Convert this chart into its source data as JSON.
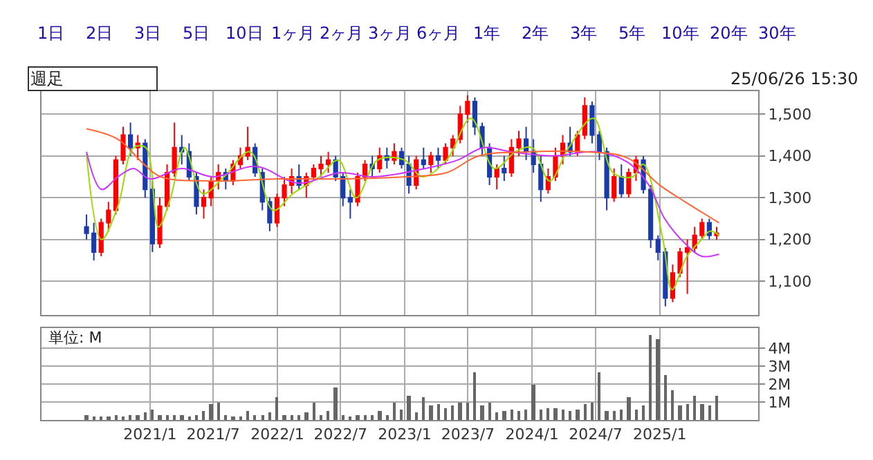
{
  "chart_data": [
    {
      "type": "other",
      "annotations": [
        "1日",
        "2日",
        "3日",
        "5日",
        "10日",
        "1ヶ月",
        "2ヶ月",
        "3ヶ月",
        "6ヶ月",
        "1年",
        "2年",
        "3年",
        "5年",
        "10年",
        "20年",
        "30年"
      ]
    },
    {
      "type": "candlestick",
      "annotations": [
        "週足",
        "25/06/26 15:30"
      ],
      "x": [
        "2020-07-03",
        "2020-07-24",
        "2020-08-14",
        "2020-09-04",
        "2020-09-25",
        "2020-10-16",
        "2020-11-06",
        "2020-11-27",
        "2020-12-18",
        "2021-01-08",
        "2021-01-29",
        "2021-02-19",
        "2021-03-12",
        "2021-04-02",
        "2021-04-23",
        "2021-05-14",
        "2021-06-04",
        "2021-06-25",
        "2021-07-16",
        "2021-08-06",
        "2021-08-27",
        "2021-09-17",
        "2021-10-08",
        "2021-10-29",
        "2021-11-19",
        "2021-12-10",
        "2021-12-31",
        "2022-01-21",
        "2022-02-11",
        "2022-03-04",
        "2022-03-25",
        "2022-04-15",
        "2022-05-06",
        "2022-05-27",
        "2022-06-17",
        "2022-07-08",
        "2022-07-29",
        "2022-08-19",
        "2022-09-09",
        "2022-09-30",
        "2022-10-21",
        "2022-11-11",
        "2022-12-02",
        "2022-12-23",
        "2023-01-13",
        "2023-02-03",
        "2023-02-24",
        "2023-03-17",
        "2023-04-07",
        "2023-04-28",
        "2023-05-19",
        "2023-06-09",
        "2023-06-30",
        "2023-07-21",
        "2023-08-11",
        "2023-09-01",
        "2023-09-22",
        "2023-10-13",
        "2023-11-03",
        "2023-11-24",
        "2023-12-15",
        "2024-01-05",
        "2024-01-26",
        "2024-02-16",
        "2024-03-08",
        "2024-03-29",
        "2024-04-19",
        "2024-05-10",
        "2024-05-31",
        "2024-06-21",
        "2024-07-12",
        "2024-08-02",
        "2024-08-23",
        "2024-09-13",
        "2024-10-04",
        "2024-10-25",
        "2024-11-15",
        "2024-12-06",
        "2024-12-27",
        "2025-01-17",
        "2025-02-07",
        "2025-02-28",
        "2025-03-21",
        "2025-04-11",
        "2025-05-02",
        "2025-05-23",
        "2025-06-13"
      ],
      "ohlc": [
        [
          1230,
          1260,
          1200,
          1215
        ],
        [
          1215,
          1240,
          1150,
          1170
        ],
        [
          1170,
          1250,
          1160,
          1240
        ],
        [
          1240,
          1290,
          1220,
          1270
        ],
        [
          1270,
          1400,
          1260,
          1390
        ],
        [
          1390,
          1470,
          1380,
          1450
        ],
        [
          1450,
          1480,
          1400,
          1420
        ],
        [
          1420,
          1450,
          1390,
          1430
        ],
        [
          1430,
          1440,
          1300,
          1320
        ],
        [
          1320,
          1340,
          1170,
          1190
        ],
        [
          1190,
          1300,
          1180,
          1280
        ],
        [
          1280,
          1380,
          1270,
          1360
        ],
        [
          1360,
          1480,
          1350,
          1420
        ],
        [
          1420,
          1450,
          1380,
          1410
        ],
        [
          1410,
          1430,
          1340,
          1350
        ],
        [
          1350,
          1360,
          1260,
          1280
        ],
        [
          1280,
          1320,
          1250,
          1300
        ],
        [
          1300,
          1350,
          1280,
          1340
        ],
        [
          1340,
          1380,
          1320,
          1360
        ],
        [
          1360,
          1370,
          1320,
          1340
        ],
        [
          1340,
          1390,
          1330,
          1380
        ],
        [
          1380,
          1420,
          1370,
          1400
        ],
        [
          1400,
          1470,
          1390,
          1420
        ],
        [
          1420,
          1430,
          1350,
          1360
        ],
        [
          1360,
          1370,
          1270,
          1290
        ],
        [
          1290,
          1300,
          1220,
          1240
        ],
        [
          1240,
          1310,
          1230,
          1300
        ],
        [
          1300,
          1350,
          1280,
          1330
        ],
        [
          1330,
          1370,
          1310,
          1350
        ],
        [
          1350,
          1380,
          1320,
          1330
        ],
        [
          1330,
          1360,
          1300,
          1350
        ],
        [
          1350,
          1380,
          1340,
          1370
        ],
        [
          1370,
          1400,
          1350,
          1380
        ],
        [
          1380,
          1410,
          1360,
          1390
        ],
        [
          1390,
          1400,
          1340,
          1350
        ],
        [
          1350,
          1360,
          1280,
          1300
        ],
        [
          1300,
          1320,
          1250,
          1290
        ],
        [
          1290,
          1360,
          1280,
          1350
        ],
        [
          1350,
          1390,
          1340,
          1380
        ],
        [
          1380,
          1400,
          1350,
          1370
        ],
        [
          1370,
          1420,
          1360,
          1400
        ],
        [
          1400,
          1420,
          1370,
          1390
        ],
        [
          1390,
          1430,
          1380,
          1410
        ],
        [
          1410,
          1420,
          1370,
          1380
        ],
        [
          1380,
          1400,
          1310,
          1330
        ],
        [
          1330,
          1400,
          1320,
          1390
        ],
        [
          1390,
          1420,
          1370,
          1380
        ],
        [
          1380,
          1410,
          1360,
          1400
        ],
        [
          1400,
          1420,
          1370,
          1390
        ],
        [
          1390,
          1430,
          1380,
          1420
        ],
        [
          1420,
          1450,
          1400,
          1440
        ],
        [
          1440,
          1520,
          1430,
          1500
        ],
        [
          1500,
          1545,
          1480,
          1530
        ],
        [
          1530,
          1540,
          1450,
          1470
        ],
        [
          1470,
          1480,
          1400,
          1420
        ],
        [
          1420,
          1430,
          1330,
          1350
        ],
        [
          1350,
          1380,
          1320,
          1370
        ],
        [
          1370,
          1400,
          1340,
          1360
        ],
        [
          1360,
          1440,
          1350,
          1420
        ],
        [
          1420,
          1460,
          1400,
          1440
        ],
        [
          1440,
          1470,
          1390,
          1410
        ],
        [
          1410,
          1440,
          1360,
          1380
        ],
        [
          1380,
          1400,
          1290,
          1320
        ],
        [
          1320,
          1370,
          1310,
          1350
        ],
        [
          1350,
          1420,
          1340,
          1400
        ],
        [
          1400,
          1450,
          1380,
          1430
        ],
        [
          1430,
          1470,
          1400,
          1410
        ],
        [
          1410,
          1460,
          1400,
          1450
        ],
        [
          1450,
          1540,
          1440,
          1520
        ],
        [
          1520,
          1530,
          1430,
          1450
        ],
        [
          1450,
          1460,
          1390,
          1410
        ],
        [
          1410,
          1420,
          1270,
          1300
        ],
        [
          1300,
          1370,
          1290,
          1350
        ],
        [
          1350,
          1380,
          1300,
          1310
        ],
        [
          1310,
          1370,
          1300,
          1360
        ],
        [
          1360,
          1400,
          1340,
          1390
        ],
        [
          1390,
          1400,
          1310,
          1320
        ],
        [
          1320,
          1330,
          1180,
          1200
        ],
        [
          1200,
          1210,
          1150,
          1170
        ],
        [
          1170,
          1180,
          1040,
          1060
        ],
        [
          1060,
          1140,
          1050,
          1120
        ],
        [
          1120,
          1180,
          1110,
          1170
        ],
        [
          1170,
          1200,
          1070,
          1180
        ],
        [
          1180,
          1230,
          1170,
          1210
        ],
        [
          1210,
          1250,
          1200,
          1240
        ],
        [
          1240,
          1250,
          1200,
          1210
        ],
        [
          1210,
          1230,
          1200,
          1215
        ]
      ],
      "colors": [
        "#1a3caa",
        "#1a3caa",
        "#ff0000",
        "#ff0000",
        "#ff0000",
        "#ff0000",
        "#1a3caa",
        "#ff0000",
        "#1a3caa",
        "#1a3caa",
        "#ff0000",
        "#ff0000",
        "#ff0000",
        "#1a3caa",
        "#1a3caa",
        "#1a3caa",
        "#ff0000",
        "#ff0000",
        "#ff0000",
        "#1a3caa",
        "#ff0000",
        "#ff0000",
        "#ff0000",
        "#1a3caa",
        "#1a3caa",
        "#1a3caa",
        "#ff0000",
        "#ff0000",
        "#ff0000",
        "#1a3caa",
        "#ff0000",
        "#ff0000",
        "#ff0000",
        "#ff0000",
        "#1a3caa",
        "#1a3caa",
        "#1a3caa",
        "#ff0000",
        "#ff0000",
        "#1a3caa",
        "#ff0000",
        "#1a3caa",
        "#ff0000",
        "#1a3caa",
        "#1a3caa",
        "#ff0000",
        "#1a3caa",
        "#ff0000",
        "#1a3caa",
        "#ff0000",
        "#ff0000",
        "#ff0000",
        "#ff0000",
        "#1a3caa",
        "#1a3caa",
        "#1a3caa",
        "#ff0000",
        "#1a3caa",
        "#ff0000",
        "#ff0000",
        "#1a3caa",
        "#1a3caa",
        "#1a3caa",
        "#ff0000",
        "#ff0000",
        "#ff0000",
        "#1a3caa",
        "#ff0000",
        "#ff0000",
        "#1a3caa",
        "#1a3caa",
        "#1a3caa",
        "#ff0000",
        "#1a3caa",
        "#ff0000",
        "#ff0000",
        "#1a3caa",
        "#1a3caa",
        "#1a3caa",
        "#1a3caa",
        "#ff0000",
        "#ff0000",
        "#ff0000",
        "#ff0000",
        "#ff0000",
        "#1a3caa",
        "#ff0000"
      ],
      "series": [
        {
          "type": "line",
          "color": "#99dd00",
          "x": [
            "2020-07-03",
            "2020-08-15",
            "2020-10-01",
            "2020-11-15",
            "2020-12-20",
            "2021-01-25",
            "2021-03-01",
            "2021-04-10",
            "2021-06-01",
            "2021-08-01",
            "2021-10-15",
            "2021-12-20",
            "2022-02-15",
            "2022-05-01",
            "2022-06-25",
            "2022-08-15",
            "2022-10-15",
            "2023-01-01",
            "2023-02-20",
            "2023-05-01",
            "2023-07-10",
            "2023-09-15",
            "2023-11-15",
            "2024-01-01",
            "2024-02-20",
            "2024-04-15",
            "2024-06-25",
            "2024-08-20",
            "2024-10-15",
            "2024-11-15",
            "2025-01-10",
            "2025-02-05",
            "2025-03-20",
            "2025-05-01",
            "2025-05-25",
            "2025-06-20"
          ],
          "values": [
            1405,
            1200,
            1280,
            1420,
            1420,
            1230,
            1300,
            1420,
            1310,
            1350,
            1410,
            1270,
            1310,
            1350,
            1390,
            1300,
            1390,
            1390,
            1350,
            1390,
            1490,
            1370,
            1410,
            1420,
            1340,
            1420,
            1490,
            1360,
            1350,
            1380,
            1200,
            1080,
            1160,
            1200,
            1220,
            1210
          ]
        },
        {
          "type": "line",
          "color": "#cc33ff",
          "x": [
            "2020-07-03",
            "2020-08-15",
            "2020-10-01",
            "2020-11-15",
            "2021-01-01",
            "2021-04-01",
            "2021-07-01",
            "2021-11-01",
            "2022-03-01",
            "2022-07-01",
            "2022-10-01",
            "2023-03-01",
            "2023-06-01",
            "2023-08-15",
            "2023-11-01",
            "2024-03-01",
            "2024-07-01",
            "2024-10-01",
            "2024-12-01",
            "2025-01-15",
            "2025-03-15",
            "2025-05-01",
            "2025-06-20"
          ],
          "values": [
            1410,
            1320,
            1350,
            1370,
            1345,
            1370,
            1350,
            1375,
            1335,
            1360,
            1350,
            1370,
            1390,
            1420,
            1410,
            1400,
            1410,
            1385,
            1330,
            1250,
            1190,
            1160,
            1165
          ]
        },
        {
          "type": "line",
          "color": "#ff6633",
          "x": [
            "2020-07-03",
            "2020-10-01",
            "2020-12-15",
            "2021-02-01",
            "2021-07-01",
            "2022-01-01",
            "2022-07-01",
            "2023-01-01",
            "2023-05-01",
            "2023-08-01",
            "2024-01-01",
            "2024-06-01",
            "2024-10-01",
            "2025-01-01",
            "2025-03-15",
            "2025-06-20"
          ],
          "values": [
            1465,
            1440,
            1380,
            1350,
            1340,
            1345,
            1345,
            1350,
            1360,
            1400,
            1410,
            1410,
            1395,
            1330,
            1290,
            1240
          ]
        }
      ],
      "xlim": [
        "2020-02-25",
        "2025-10-10"
      ],
      "xticks": [
        {
          "value": "2021-01-01",
          "label": null
        },
        {
          "value": "2021-07-01",
          "label": null
        },
        {
          "value": "2022-01-01",
          "label": null
        },
        {
          "value": "2022-07-01",
          "label": null
        },
        {
          "value": "2023-01-01",
          "label": null
        },
        {
          "value": "2023-07-01",
          "label": null
        },
        {
          "value": "2024-01-01",
          "label": null
        },
        {
          "value": "2024-07-01",
          "label": null
        },
        {
          "value": "2025-01-01",
          "label": null
        }
      ],
      "ylim": [
        1020,
        1555
      ],
      "yticks": [
        {
          "value": 1100,
          "label": "1,100"
        },
        {
          "value": 1200,
          "label": "1,200"
        },
        {
          "value": 1300,
          "label": "1,300"
        },
        {
          "value": 1400,
          "label": "1,400"
        },
        {
          "value": 1500,
          "label": "1,500"
        }
      ],
      "tick_labels": "y",
      "grid": true,
      "legend": false
    },
    {
      "type": "bar",
      "annotations": [
        "単位: M"
      ],
      "x": [
        "2020-07-03",
        "2020-07-24",
        "2020-08-14",
        "2020-09-04",
        "2020-09-25",
        "2020-10-16",
        "2020-11-06",
        "2020-11-27",
        "2020-12-18",
        "2021-01-08",
        "2021-01-29",
        "2021-02-19",
        "2021-03-12",
        "2021-04-02",
        "2021-04-23",
        "2021-05-14",
        "2021-06-04",
        "2021-06-25",
        "2021-07-16",
        "2021-08-06",
        "2021-08-27",
        "2021-09-17",
        "2021-10-08",
        "2021-10-29",
        "2021-11-19",
        "2021-12-10",
        "2021-12-31",
        "2022-01-21",
        "2022-02-11",
        "2022-03-04",
        "2022-03-25",
        "2022-04-15",
        "2022-05-06",
        "2022-05-27",
        "2022-06-17",
        "2022-07-08",
        "2022-07-29",
        "2022-08-19",
        "2022-09-09",
        "2022-09-30",
        "2022-10-21",
        "2022-11-11",
        "2022-12-02",
        "2022-12-23",
        "2023-01-13",
        "2023-02-03",
        "2023-02-24",
        "2023-03-17",
        "2023-04-07",
        "2023-04-28",
        "2023-05-19",
        "2023-06-09",
        "2023-06-30",
        "2023-07-21",
        "2023-08-11",
        "2023-09-01",
        "2023-09-22",
        "2023-10-13",
        "2023-11-03",
        "2023-11-24",
        "2023-12-15",
        "2024-01-05",
        "2024-01-26",
        "2024-02-16",
        "2024-03-08",
        "2024-03-29",
        "2024-04-19",
        "2024-05-10",
        "2024-05-31",
        "2024-06-21",
        "2024-07-12",
        "2024-08-02",
        "2024-08-23",
        "2024-09-13",
        "2024-10-04",
        "2024-10-25",
        "2024-11-15",
        "2024-12-06",
        "2024-12-27",
        "2025-01-17",
        "2025-02-07",
        "2025-02-28",
        "2025-03-21",
        "2025-04-11",
        "2025-05-02",
        "2025-05-23",
        "2025-06-13"
      ],
      "series": [
        {
          "color": "#666666",
          "values": [
            0.25,
            0.2,
            0.2,
            0.2,
            0.25,
            0.2,
            0.25,
            0.3,
            0.4,
            0.6,
            0.3,
            0.3,
            0.25,
            0.3,
            0.2,
            0.3,
            0.5,
            0.9,
            1.0,
            0.3,
            0.2,
            0.2,
            0.5,
            0.3,
            0.3,
            0.4,
            1.3,
            0.3,
            0.3,
            0.3,
            0.4,
            1.0,
            0.3,
            0.5,
            1.8,
            0.3,
            0.2,
            0.3,
            0.3,
            0.3,
            0.5,
            0.3,
            1.0,
            0.6,
            1.4,
            0.4,
            1.3,
            0.8,
            0.9,
            0.7,
            0.8,
            1.0,
            1.0,
            2.7,
            0.8,
            1.0,
            0.4,
            0.5,
            0.6,
            0.5,
            0.6,
            2.0,
            0.6,
            0.7,
            0.7,
            0.6,
            0.5,
            0.6,
            0.9,
            1.0,
            2.7,
            0.5,
            0.5,
            0.6,
            1.3,
            0.6,
            0.8,
            4.8,
            4.5,
            2.5,
            1.7,
            0.8,
            0.9,
            1.4,
            0.9,
            0.8,
            1.4
          ]
        }
      ],
      "xlim": [
        "2020-02-25",
        "2025-10-10"
      ],
      "xticks": [
        {
          "value": "2021-01-01",
          "label": "2021/1"
        },
        {
          "value": "2021-07-01",
          "label": "2021/7"
        },
        {
          "value": "2022-01-01",
          "label": "2022/1"
        },
        {
          "value": "2022-07-01",
          "label": "2022/7"
        },
        {
          "value": "2023-01-01",
          "label": "2023/1"
        },
        {
          "value": "2023-07-01",
          "label": "2023/7"
        },
        {
          "value": "2024-01-01",
          "label": "2024/1"
        },
        {
          "value": "2024-07-01",
          "label": "2024/7"
        },
        {
          "value": "2025-01-01",
          "label": "2025/1"
        }
      ],
      "ylim": [
        0,
        5.15
      ],
      "yticks": [
        {
          "value": 1,
          "label": "1M"
        },
        {
          "value": 2,
          "label": "2M"
        },
        {
          "value": 3,
          "label": "3M"
        },
        {
          "value": 4,
          "label": "4M"
        }
      ],
      "grid": true,
      "legend": false
    }
  ]
}
